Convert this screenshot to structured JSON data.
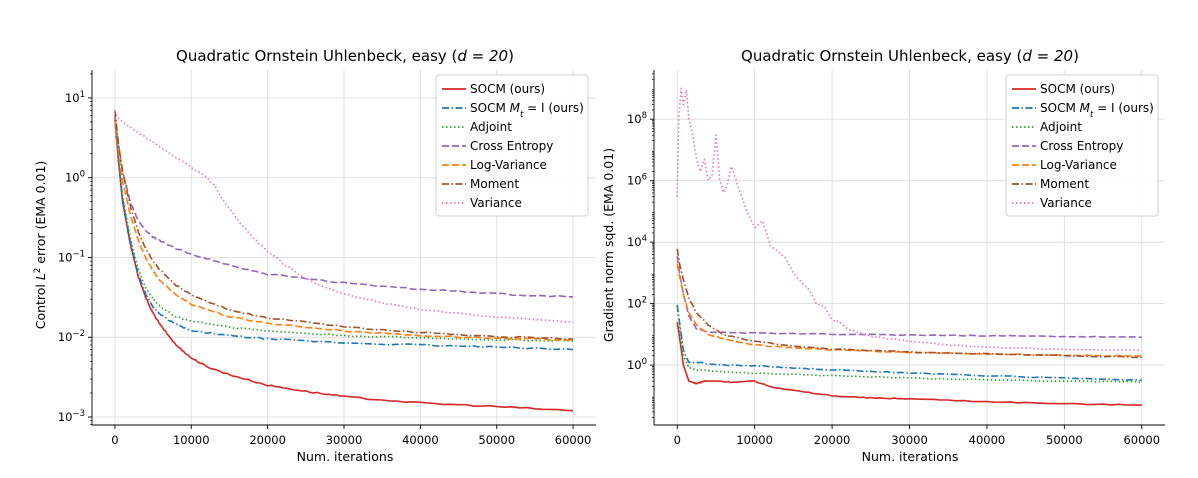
{
  "figure": {
    "background": "#ffffff"
  },
  "chart_data": [
    {
      "type": "line",
      "title_main": "Quadratic Ornstein Uhlenbeck, easy (",
      "title_math": "d = 20",
      "title_end": ")",
      "xlabel": "Num. iterations",
      "ylabel_pre": "Control ",
      "ylabel_math": "L",
      "ylabel_sup": "2",
      "ylabel_post": " error (EMA 0.01)",
      "xscale": "linear",
      "yscale": "log",
      "xlim": [
        -3000,
        63000
      ],
      "ylim_log10": [
        -3.1,
        1.35
      ],
      "xticks": [
        0,
        10000,
        20000,
        30000,
        40000,
        50000,
        60000
      ],
      "xtick_labels": [
        "0",
        "10000",
        "20000",
        "30000",
        "40000",
        "50000",
        "60000"
      ],
      "yticks_log10": [
        -3,
        -2,
        -1,
        0,
        1
      ],
      "ytick_base": "10",
      "ytick_exps": [
        "−3",
        "−2",
        "−1",
        "0",
        "1"
      ],
      "grid": true,
      "legend_position": "top-right",
      "series": [
        {
          "name": "SOCM (ours)",
          "color": "#d62728",
          "dash": "solid",
          "x": [
            0,
            500,
            1000,
            2000,
            3000,
            4000,
            5000,
            6000,
            8000,
            10000,
            12000,
            15000,
            20000,
            25000,
            30000,
            40000,
            50000,
            60000
          ],
          "y": [
            5.5,
            1.5,
            0.5,
            0.15,
            0.06,
            0.032,
            0.02,
            0.014,
            0.008,
            0.0055,
            0.0043,
            0.0034,
            0.0025,
            0.0021,
            0.0018,
            0.0015,
            0.00135,
            0.0012
          ]
        },
        {
          "name": "SOCM M_t = I (ours)",
          "label_pre": "SOCM ",
          "label_math": "M",
          "label_sub": "t",
          "label_post": " = I (ours)",
          "color": "#1f77b4",
          "dash": "dashdot",
          "x": [
            0,
            500,
            1000,
            2000,
            3000,
            4000,
            5000,
            6000,
            8000,
            10000,
            15000,
            20000,
            30000,
            40000,
            50000,
            60000
          ],
          "y": [
            5.5,
            1.5,
            0.55,
            0.16,
            0.065,
            0.035,
            0.024,
            0.019,
            0.0145,
            0.012,
            0.0105,
            0.0095,
            0.0085,
            0.008,
            0.0075,
            0.007
          ]
        },
        {
          "name": "Adjoint",
          "color": "#2ca02c",
          "dash": "dotted",
          "x": [
            0,
            500,
            1000,
            2000,
            3000,
            4000,
            5000,
            6000,
            8000,
            10000,
            15000,
            20000,
            30000,
            40000,
            50000,
            60000
          ],
          "y": [
            5.5,
            1.6,
            0.6,
            0.18,
            0.075,
            0.042,
            0.03,
            0.024,
            0.018,
            0.016,
            0.0135,
            0.012,
            0.0105,
            0.0098,
            0.0093,
            0.009
          ]
        },
        {
          "name": "Cross Entropy",
          "color": "#9467bd",
          "dash": "dashed",
          "x": [
            0,
            500,
            1000,
            2000,
            3000,
            4000,
            5000,
            6000,
            8000,
            10000,
            15000,
            20000,
            30000,
            40000,
            50000,
            60000
          ],
          "y": [
            6.0,
            2.5,
            1.2,
            0.5,
            0.3,
            0.22,
            0.18,
            0.16,
            0.13,
            0.11,
            0.08,
            0.062,
            0.048,
            0.04,
            0.035,
            0.032
          ]
        },
        {
          "name": "Log-Variance",
          "color": "#ff7f0e",
          "dash": "dashed",
          "x": [
            0,
            500,
            1000,
            2000,
            3000,
            4000,
            5000,
            6000,
            8000,
            10000,
            15000,
            20000,
            30000,
            40000,
            50000,
            60000
          ],
          "y": [
            5.5,
            2.0,
            0.9,
            0.35,
            0.17,
            0.1,
            0.068,
            0.05,
            0.034,
            0.026,
            0.018,
            0.015,
            0.012,
            0.0105,
            0.0097,
            0.0092
          ]
        },
        {
          "name": "Moment",
          "color": "#a0522d",
          "dash": "dashdot",
          "x": [
            0,
            500,
            1000,
            2000,
            3000,
            4000,
            5000,
            6000,
            8000,
            10000,
            15000,
            20000,
            30000,
            40000,
            50000,
            60000
          ],
          "y": [
            7.0,
            2.5,
            1.2,
            0.45,
            0.22,
            0.13,
            0.09,
            0.068,
            0.045,
            0.034,
            0.022,
            0.0175,
            0.0135,
            0.0115,
            0.0102,
            0.0095
          ]
        },
        {
          "name": "Variance",
          "color": "#e377c2",
          "dash": "dotted",
          "x": [
            0,
            500,
            1000,
            2000,
            4000,
            6000,
            8000,
            10000,
            12000,
            13000,
            14000,
            16000,
            18000,
            20000,
            22000,
            24000,
            26000,
            30000,
            35000,
            40000,
            50000,
            60000
          ],
          "y": [
            7.0,
            5.5,
            5.0,
            4.3,
            3.2,
            2.4,
            1.8,
            1.35,
            1.0,
            0.8,
            0.55,
            0.3,
            0.18,
            0.12,
            0.085,
            0.062,
            0.048,
            0.035,
            0.027,
            0.022,
            0.018,
            0.0155
          ]
        }
      ]
    },
    {
      "type": "line",
      "title_main": "Quadratic Ornstein Uhlenbeck, easy (",
      "title_math": "d = 20",
      "title_end": ")",
      "xlabel": "Num. iterations",
      "ylabel": "Gradient norm sqd. (EMA 0.01)",
      "xscale": "linear",
      "yscale": "log",
      "xlim": [
        -3000,
        63000
      ],
      "ylim_log10": [
        -1.95,
        9.6
      ],
      "xticks": [
        0,
        10000,
        20000,
        30000,
        40000,
        50000,
        60000
      ],
      "xtick_labels": [
        "0",
        "10000",
        "20000",
        "30000",
        "40000",
        "50000",
        "60000"
      ],
      "yticks_log10": [
        0,
        2,
        4,
        6,
        8
      ],
      "ytick_base": "10",
      "ytick_exps": [
        "0",
        "2",
        "4",
        "6",
        "8"
      ],
      "grid": true,
      "legend_position": "top-right",
      "series": [
        {
          "name": "SOCM (ours)",
          "color": "#d62728",
          "dash": "solid",
          "x": [
            0,
            300,
            800,
            1500,
            2500,
            3500,
            5000,
            7000,
            10000,
            12000,
            15000,
            20000,
            25000,
            30000,
            40000,
            50000,
            60000
          ],
          "y": [
            25,
            8,
            1.0,
            0.3,
            0.25,
            0.3,
            0.3,
            0.28,
            0.3,
            0.2,
            0.15,
            0.1,
            0.085,
            0.08,
            0.065,
            0.055,
            0.05
          ]
        },
        {
          "name": "SOCM M_t = I (ours)",
          "label_pre": "SOCM ",
          "label_math": "M",
          "label_sub": "t",
          "label_post": " = I (ours)",
          "color": "#1f77b4",
          "dash": "dashdot",
          "x": [
            0,
            300,
            800,
            1500,
            2500,
            4000,
            6000,
            10000,
            15000,
            20000,
            30000,
            40000,
            50000,
            60000
          ],
          "y": [
            90,
            25,
            3.0,
            1.2,
            1.25,
            1.1,
            1.0,
            0.95,
            0.8,
            0.7,
            0.55,
            0.45,
            0.38,
            0.32
          ]
        },
        {
          "name": "Adjoint",
          "color": "#2ca02c",
          "dash": "dotted",
          "x": [
            0,
            300,
            800,
            1500,
            2500,
            4000,
            6000,
            10000,
            15000,
            20000,
            30000,
            40000,
            50000,
            60000
          ],
          "y": [
            80,
            20,
            2.0,
            0.8,
            0.7,
            0.65,
            0.6,
            0.55,
            0.5,
            0.45,
            0.38,
            0.33,
            0.3,
            0.28
          ]
        },
        {
          "name": "Cross Entropy",
          "color": "#9467bd",
          "dash": "dashed",
          "x": [
            0,
            300,
            800,
            1500,
            2500,
            4000,
            6000,
            10000,
            20000,
            30000,
            40000,
            50000,
            60000
          ],
          "y": [
            3500,
            1000,
            200,
            40,
            15,
            12,
            11.5,
            11,
            10,
            9.5,
            9,
            8.5,
            8
          ]
        },
        {
          "name": "Log-Variance",
          "color": "#ff7f0e",
          "dash": "dashed",
          "x": [
            0,
            300,
            800,
            1500,
            2500,
            4000,
            6000,
            8000,
            10000,
            15000,
            20000,
            30000,
            40000,
            50000,
            60000
          ],
          "y": [
            2000,
            800,
            200,
            50,
            20,
            10,
            7,
            5.5,
            4.5,
            3.6,
            3.1,
            2.6,
            2.3,
            2.1,
            1.95
          ]
        },
        {
          "name": "Moment",
          "color": "#a0522d",
          "dash": "dashdot",
          "x": [
            0,
            300,
            800,
            1500,
            2500,
            4000,
            6000,
            8000,
            10000,
            15000,
            20000,
            30000,
            40000,
            50000,
            60000
          ],
          "y": [
            6000,
            2000,
            600,
            150,
            50,
            20,
            10,
            7.5,
            6,
            4.2,
            3.3,
            2.7,
            2.3,
            2.0,
            1.8
          ]
        },
        {
          "name": "Variance",
          "color": "#e377c2",
          "dash": "dotted",
          "x": [
            0,
            200,
            500,
            800,
            1200,
            1500,
            2000,
            2500,
            3000,
            3500,
            4000,
            4500,
            5000,
            5500,
            6000,
            6500,
            7000,
            8000,
            9000,
            10000,
            11000,
            12000,
            13000,
            14000,
            15000,
            16000,
            17000,
            18000,
            19000,
            20000,
            21000,
            22000,
            24000,
            26000,
            30000,
            35000,
            40000,
            50000,
            60000
          ],
          "y": [
            300000,
            100000000.0,
            1000000000.0,
            300000000.0,
            900000000.0,
            100000000.0,
            30000000.0,
            5000000.0,
            2000000.0,
            5000000.0,
            1000000.0,
            1500000.0,
            30000000.0,
            1000000.0,
            400000.0,
            800000.0,
            3000000.0,
            500000.0,
            100000.0,
            30000.0,
            50000.0,
            8000,
            5000,
            3000,
            1000,
            500,
            300,
            100,
            80,
            30,
            25,
            15,
            10,
            8,
            6,
            4.5,
            3.8,
            3.2,
            3.0
          ]
        }
      ]
    }
  ]
}
